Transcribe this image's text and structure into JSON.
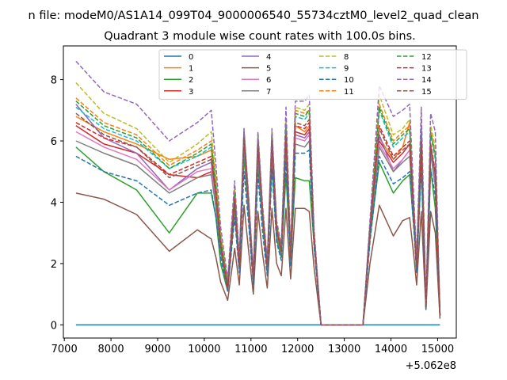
{
  "suptitle": "n file: modeM0/AS1A14_099T04_9000006540_55734cztM0_level2_quad_clean",
  "chart_data": {
    "type": "line",
    "title": "Quadrant 3 module wise count rates with 100.0s bins.",
    "xlabel": "",
    "ylabel": "",
    "x_offset_label": "+5.062e8",
    "xlim": [
      6980,
      15400
    ],
    "ylim": [
      -0.43,
      9.1
    ],
    "xticks": [
      7000,
      8000,
      9000,
      10000,
      11000,
      12000,
      13000,
      14000,
      15000
    ],
    "yticks": [
      0,
      2,
      4,
      6,
      8
    ],
    "grid": false,
    "legend": {
      "placement": "upper-center",
      "columns": 4
    },
    "key_points_x": [
      7250,
      7850,
      8550,
      9250,
      9850,
      10150,
      10250,
      10350,
      10500,
      10650,
      10750,
      10850,
      10950,
      11050,
      11150,
      11250,
      11350,
      11450,
      11550,
      11650,
      11750,
      11850,
      11950,
      12150,
      12250,
      12350,
      12500,
      13400,
      13550,
      13750,
      14050,
      14250,
      14400,
      14500,
      14550,
      14650,
      14750,
      14850,
      14950,
      15050
    ],
    "series": [
      {
        "name": "0",
        "color": "#1f77b4",
        "dash": "solid",
        "values": [
          0,
          0,
          0,
          0,
          0,
          0,
          0,
          0,
          0,
          0,
          0,
          0,
          0,
          0,
          0,
          0,
          0,
          0,
          0,
          0,
          0,
          0,
          0,
          0,
          0,
          0,
          0,
          0,
          0,
          0,
          0,
          0,
          0,
          0,
          0,
          0,
          0,
          0,
          0,
          0
        ]
      },
      {
        "name": "1",
        "color": "#ff7f0e",
        "dash": "solid",
        "values": [
          6.8,
          6.3,
          5.9,
          5.4,
          5.5,
          5.7,
          4.3,
          2.7,
          1.3,
          4.2,
          2.0,
          6.2,
          4.0,
          1.6,
          6.0,
          3.7,
          2.0,
          6.0,
          3.2,
          2.5,
          6.2,
          2.2,
          6.5,
          6.3,
          6.5,
          3.0,
          0,
          0,
          3.2,
          6.1,
          5.4,
          5.8,
          6.6,
          3.4,
          2.0,
          6.1,
          0.6,
          5.9,
          4.9,
          0.3
        ]
      },
      {
        "name": "2",
        "color": "#2ca02c",
        "dash": "solid",
        "values": [
          5.8,
          5.0,
          4.4,
          3.0,
          4.3,
          4.3,
          3.5,
          2.0,
          1.1,
          3.7,
          1.8,
          5.5,
          3.5,
          1.4,
          5.2,
          3.3,
          1.7,
          5.3,
          2.8,
          2.2,
          4.9,
          2.1,
          4.8,
          4.7,
          4.7,
          2.7,
          0,
          0,
          2.8,
          5.3,
          4.3,
          4.7,
          4.9,
          3.0,
          1.7,
          5.2,
          0.5,
          5.1,
          3.8,
          0.3
        ]
      },
      {
        "name": "3",
        "color": "#d62728",
        "dash": "solid",
        "values": [
          6.5,
          5.9,
          5.6,
          4.9,
          4.8,
          5.0,
          4.0,
          2.5,
          1.2,
          4.0,
          1.9,
          6.0,
          3.8,
          1.5,
          5.8,
          3.6,
          1.9,
          5.8,
          3.1,
          2.4,
          6.0,
          2.2,
          6.3,
          6.2,
          6.4,
          2.9,
          0,
          0,
          3.1,
          6.0,
          5.3,
          5.6,
          5.9,
          3.3,
          1.9,
          5.9,
          0.6,
          5.8,
          4.8,
          0.3
        ]
      },
      {
        "name": "4",
        "color": "#9467bd",
        "dash": "solid",
        "values": [
          7.2,
          6.1,
          5.6,
          4.4,
          5.1,
          5.3,
          4.1,
          2.6,
          1.2,
          4.0,
          1.9,
          6.0,
          3.8,
          1.5,
          5.8,
          3.6,
          1.9,
          5.8,
          3.1,
          2.4,
          6.0,
          2.2,
          6.2,
          6.1,
          6.3,
          2.9,
          0,
          0,
          3.1,
          6.2,
          5.0,
          5.4,
          5.7,
          3.3,
          1.9,
          5.9,
          0.6,
          5.8,
          4.7,
          0.3
        ]
      },
      {
        "name": "5",
        "color": "#8c564b",
        "dash": "solid",
        "values": [
          4.3,
          4.1,
          3.6,
          2.4,
          3.1,
          2.8,
          2.2,
          1.4,
          0.8,
          2.5,
          1.3,
          3.9,
          2.4,
          1.0,
          3.7,
          2.3,
          1.2,
          3.8,
          2.0,
          1.6,
          3.8,
          1.5,
          3.8,
          3.8,
          3.7,
          1.9,
          0,
          0,
          2.0,
          3.9,
          2.9,
          3.4,
          3.5,
          2.1,
          1.3,
          3.7,
          0.5,
          3.7,
          3.0,
          0.2
        ]
      },
      {
        "name": "6",
        "color": "#e377c2",
        "dash": "solid",
        "values": [
          6.3,
          5.8,
          5.4,
          4.4,
          5.0,
          5.1,
          3.9,
          2.4,
          1.2,
          3.9,
          1.8,
          5.9,
          3.7,
          1.5,
          5.7,
          3.5,
          1.8,
          5.7,
          3.0,
          2.3,
          5.9,
          2.1,
          6.1,
          6.0,
          6.2,
          2.8,
          0,
          0,
          3.0,
          5.9,
          5.1,
          5.4,
          5.7,
          3.2,
          1.9,
          5.8,
          0.6,
          5.7,
          4.6,
          0.3
        ]
      },
      {
        "name": "7",
        "color": "#7f7f7f",
        "dash": "solid",
        "values": [
          6.0,
          5.6,
          5.2,
          4.3,
          4.8,
          4.9,
          3.8,
          2.4,
          1.1,
          3.8,
          1.8,
          5.8,
          3.6,
          1.4,
          5.5,
          3.4,
          1.8,
          5.6,
          2.9,
          2.3,
          5.8,
          2.1,
          5.9,
          5.8,
          6.0,
          2.8,
          0,
          0,
          2.9,
          5.8,
          5.0,
          5.3,
          5.5,
          3.1,
          1.8,
          5.6,
          0.6,
          5.6,
          4.5,
          0.3
        ]
      },
      {
        "name": "8",
        "color": "#bcbd22",
        "dash": "dashed",
        "values": [
          7.9,
          6.9,
          6.4,
          5.3,
          5.9,
          6.3,
          4.8,
          3.0,
          1.4,
          4.5,
          2.1,
          6.4,
          4.1,
          1.6,
          6.2,
          3.8,
          2.0,
          6.3,
          3.3,
          2.5,
          6.7,
          2.3,
          7.1,
          7.0,
          7.2,
          3.1,
          0,
          0,
          3.3,
          7.5,
          6.2,
          6.4,
          6.7,
          3.6,
          2.1,
          6.7,
          0.7,
          6.5,
          5.8,
          0.3
        ]
      },
      {
        "name": "9",
        "color": "#17becf",
        "dash": "dashed",
        "values": [
          7.1,
          6.4,
          6.0,
          5.1,
          5.5,
          5.8,
          4.4,
          2.7,
          1.3,
          4.2,
          2.0,
          6.2,
          3.9,
          1.5,
          6.0,
          3.7,
          1.9,
          6.1,
          3.2,
          2.4,
          6.4,
          2.2,
          6.8,
          6.7,
          6.9,
          3.0,
          0,
          0,
          3.2,
          7.0,
          5.8,
          6.1,
          6.3,
          3.4,
          2.0,
          6.3,
          0.6,
          6.2,
          5.4,
          0.3
        ]
      },
      {
        "name": "10",
        "color": "#1f77b4",
        "dash": "dashed",
        "values": [
          5.5,
          5.0,
          4.7,
          3.9,
          4.3,
          4.4,
          3.5,
          2.2,
          1.1,
          3.5,
          1.7,
          5.0,
          3.3,
          1.3,
          4.9,
          3.0,
          1.6,
          5.1,
          2.7,
          2.1,
          5.3,
          1.9,
          5.6,
          5.6,
          5.7,
          2.6,
          0,
          0,
          2.7,
          5.5,
          4.6,
          4.8,
          5.0,
          2.9,
          1.7,
          5.2,
          0.5,
          5.1,
          4.2,
          0.3
        ]
      },
      {
        "name": "11",
        "color": "#ff7f0e",
        "dash": "dashed",
        "values": [
          7.4,
          6.6,
          6.2,
          5.2,
          5.7,
          6.0,
          4.6,
          2.8,
          1.3,
          4.3,
          2.0,
          6.3,
          4.0,
          1.6,
          6.1,
          3.7,
          2.0,
          6.2,
          3.2,
          2.5,
          6.5,
          2.2,
          7.0,
          6.9,
          7.0,
          3.0,
          0,
          0,
          3.2,
          7.2,
          6.0,
          6.3,
          6.5,
          3.5,
          2.0,
          6.5,
          0.6,
          6.3,
          5.6,
          0.3
        ]
      },
      {
        "name": "12",
        "color": "#2ca02c",
        "dash": "dashed",
        "values": [
          7.3,
          6.5,
          6.1,
          5.1,
          5.6,
          5.9,
          4.5,
          2.8,
          1.3,
          4.3,
          2.0,
          6.3,
          4.0,
          1.6,
          6.1,
          3.7,
          2.0,
          6.2,
          3.2,
          2.5,
          6.5,
          2.2,
          6.9,
          6.8,
          7.0,
          3.0,
          0,
          0,
          3.2,
          7.1,
          5.9,
          6.2,
          6.4,
          3.5,
          2.0,
          6.4,
          0.6,
          6.3,
          5.5,
          0.3
        ]
      },
      {
        "name": "13",
        "color": "#d62728",
        "dash": "dashed",
        "values": [
          6.6,
          6.1,
          5.8,
          4.9,
          5.3,
          5.5,
          4.2,
          2.6,
          1.2,
          4.1,
          1.9,
          6.1,
          3.9,
          1.5,
          5.9,
          3.6,
          1.9,
          6.0,
          3.1,
          2.4,
          6.2,
          2.2,
          6.5,
          6.4,
          6.6,
          2.9,
          0,
          0,
          3.1,
          6.5,
          5.5,
          5.8,
          6.0,
          3.3,
          1.9,
          6.0,
          0.6,
          5.9,
          5.0,
          0.3
        ]
      },
      {
        "name": "14",
        "color": "#9467bd",
        "dash": "dashed",
        "values": [
          8.6,
          7.6,
          7.2,
          6.0,
          6.6,
          7.0,
          5.2,
          3.2,
          1.5,
          4.7,
          2.2,
          6.4,
          4.2,
          1.7,
          6.3,
          3.9,
          2.1,
          6.4,
          3.4,
          2.6,
          7.1,
          2.4,
          7.3,
          7.3,
          7.5,
          3.2,
          0,
          0,
          3.4,
          7.8,
          6.8,
          7.0,
          7.2,
          3.8,
          2.2,
          7.1,
          0.7,
          6.9,
          6.3,
          0.3
        ]
      },
      {
        "name": "15",
        "color": "#8c564b",
        "dash": "dashed",
        "values": [
          6.9,
          6.2,
          5.8,
          4.8,
          5.2,
          5.4,
          4.2,
          2.6,
          1.2,
          4.0,
          1.9,
          6.1,
          3.9,
          1.5,
          5.9,
          3.6,
          1.9,
          6.0,
          3.1,
          2.4,
          6.2,
          2.2,
          6.6,
          6.5,
          6.7,
          2.9,
          0,
          0,
          3.1,
          6.4,
          5.4,
          5.7,
          5.9,
          3.3,
          1.9,
          5.9,
          0.6,
          5.8,
          4.9,
          0.3
        ]
      }
    ]
  }
}
